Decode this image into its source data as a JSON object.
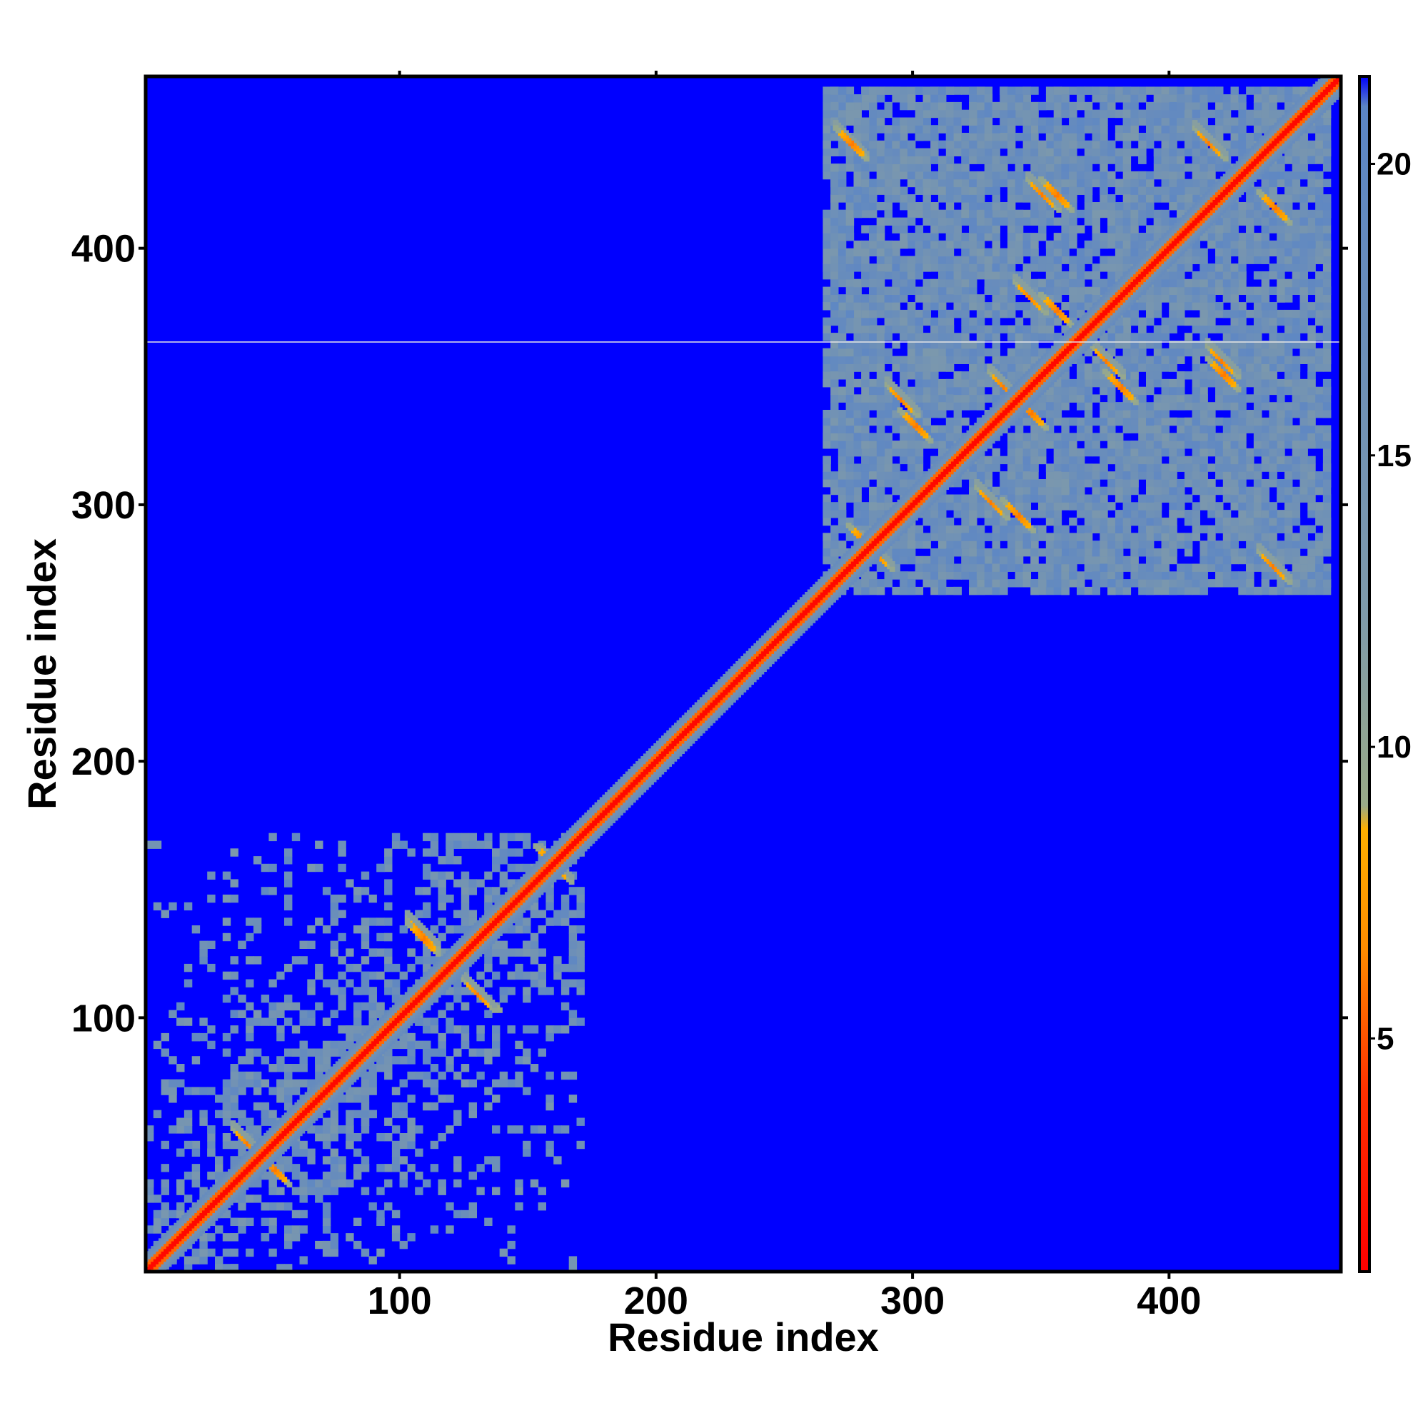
{
  "chart_data": {
    "type": "heatmap",
    "title": "",
    "xlabel": "Residue index",
    "ylabel": "Residue index",
    "xlim": [
      1,
      467
    ],
    "ylim": [
      1,
      467
    ],
    "xticks": [
      100,
      200,
      300,
      400
    ],
    "yticks": [
      100,
      200,
      300,
      400
    ],
    "colorbar": {
      "ticks": [
        5,
        10,
        15,
        20
      ],
      "range": [
        1,
        21.5
      ],
      "scale": [
        {
          "value": 1,
          "color": "#ff0000"
        },
        {
          "value": 4,
          "color": "#ff3000"
        },
        {
          "value": 6.5,
          "color": "#ff8c00"
        },
        {
          "value": 8.5,
          "color": "#ffb000"
        },
        {
          "value": 9,
          "color": "#9aaa88"
        },
        {
          "value": 12,
          "color": "#7f9aaa"
        },
        {
          "value": 21,
          "color": "#5b85c6"
        },
        {
          "value": 21.5,
          "color": "#0000ff"
        }
      ]
    },
    "background_color": "#0000ff",
    "description_regions": [
      {
        "name": "diagonal",
        "from": [
          1,
          1
        ],
        "to": [
          467,
          467
        ],
        "value": 2
      },
      {
        "name": "domain-1",
        "x": [
          1,
          170
        ],
        "y": [
          1,
          170
        ],
        "value": 15
      },
      {
        "name": "domain-2",
        "x": [
          265,
          462
        ],
        "y": [
          265,
          462
        ],
        "value": 15
      }
    ],
    "contacts": [
      {
        "x": 275,
        "y": 440
      },
      {
        "x": 415,
        "y": 440
      },
      {
        "x": 350,
        "y": 420
      },
      {
        "x": 345,
        "y": 380
      },
      {
        "x": 375,
        "y": 355
      },
      {
        "x": 335,
        "y": 345
      },
      {
        "x": 295,
        "y": 340
      },
      {
        "x": 285,
        "y": 280
      },
      {
        "x": 330,
        "y": 300
      },
      {
        "x": 440,
        "y": 275
      },
      {
        "x": 420,
        "y": 355
      },
      {
        "x": 108,
        "y": 132
      },
      {
        "x": 130,
        "y": 108
      },
      {
        "x": 160,
        "y": 158
      },
      {
        "x": 40,
        "y": 50
      }
    ]
  }
}
